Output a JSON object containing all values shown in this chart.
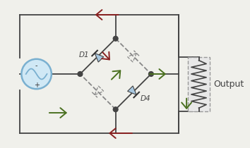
{
  "bg_color": "#f0f0eb",
  "wire_color": "#444444",
  "active_diode_color": "#a8c8e0",
  "dashed_color": "#888888",
  "active_arrow_color": "#4a7020",
  "inactive_arrow_color": "#882020",
  "source_color": "#7ab0d0",
  "source_fill": "#d0e8f5",
  "resistor_fill": "#e8e8e8",
  "resistor_edge": "#999999",
  "title": "Output",
  "D1_label": "D1",
  "D4_label": "D4",
  "minus_label": "-",
  "plus_label": "+"
}
